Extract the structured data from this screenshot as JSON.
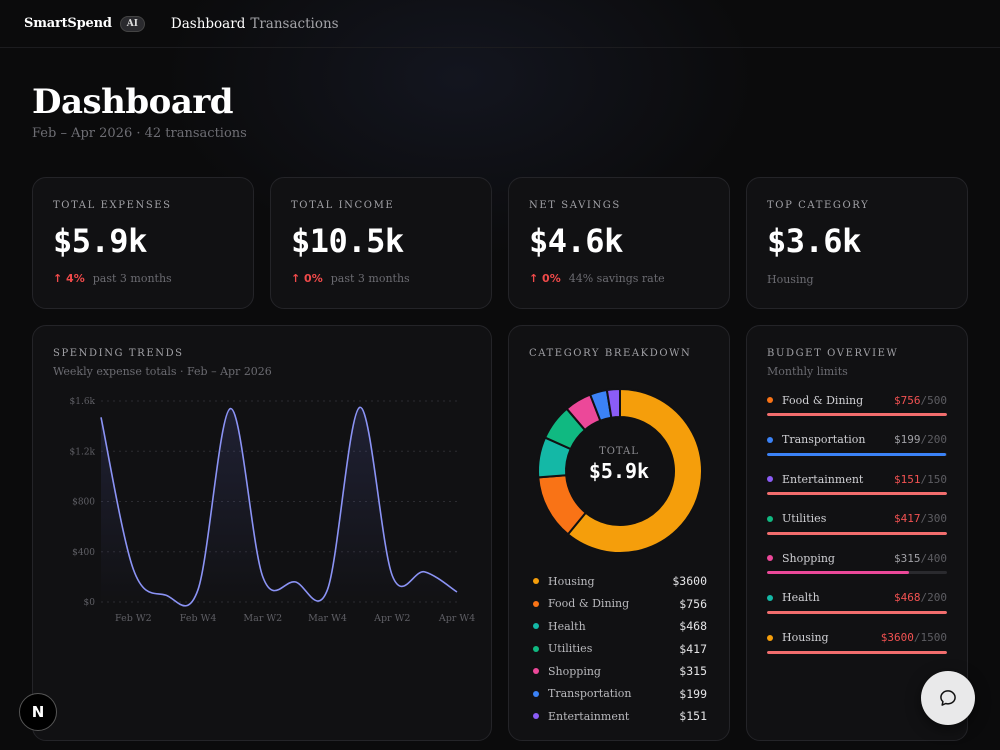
{
  "app": {
    "brand": "SmartSpend",
    "badge": "AI"
  },
  "nav": [
    {
      "label": "Dashboard",
      "active": true
    },
    {
      "label": "Transactions",
      "active": false
    }
  ],
  "header": {
    "title": "Dashboard",
    "subtitle": "Feb – Apr 2026 · 42 transactions"
  },
  "kpis": [
    {
      "label": "TOTAL EXPENSES",
      "value": "$5.9k",
      "change": "↑ 4%",
      "note": "past 3 months"
    },
    {
      "label": "TOTAL INCOME",
      "value": "$10.5k",
      "change": "↑ 0%",
      "note": "past 3 months"
    },
    {
      "label": "NET SAVINGS",
      "value": "$4.6k",
      "change": "↑ 0%",
      "note": "44% savings rate"
    },
    {
      "label": "TOP CATEGORY",
      "value": "$3.6k",
      "note": "Housing"
    }
  ],
  "trends": {
    "title": "SPENDING TRENDS",
    "subtitle": "Weekly expense totals · Feb – Apr 2026"
  },
  "breakdown": {
    "title": "CATEGORY BREAKDOWN",
    "center_label": "TOTAL",
    "center_value": "$5.9k",
    "items": [
      {
        "name": "Housing",
        "amount": "$3600",
        "value": 3600,
        "color": "#f59e0b"
      },
      {
        "name": "Food & Dining",
        "amount": "$756",
        "value": 756,
        "color": "#f97316"
      },
      {
        "name": "Health",
        "amount": "$468",
        "value": 468,
        "color": "#14b8a6"
      },
      {
        "name": "Utilities",
        "amount": "$417",
        "value": 417,
        "color": "#10b981"
      },
      {
        "name": "Shopping",
        "amount": "$315",
        "value": 315,
        "color": "#ec4899"
      },
      {
        "name": "Transportation",
        "amount": "$199",
        "value": 199,
        "color": "#3b82f6"
      },
      {
        "name": "Entertainment",
        "amount": "$151",
        "value": 151,
        "color": "#8b5cf6"
      }
    ]
  },
  "budget": {
    "title": "BUDGET OVERVIEW",
    "subtitle": "Monthly limits",
    "items": [
      {
        "name": "Food & Dining",
        "spent": "$756",
        "limit": "/500",
        "over": true,
        "fraction": 1.0,
        "dot": "#f97316",
        "bar": "#f26d6d"
      },
      {
        "name": "Transportation",
        "spent": "$199",
        "limit": "/200",
        "over": false,
        "fraction": 0.995,
        "dot": "#3b82f6",
        "bar": "#3b82f6"
      },
      {
        "name": "Entertainment",
        "spent": "$151",
        "limit": "/150",
        "over": true,
        "fraction": 1.0,
        "dot": "#8b5cf6",
        "bar": "#f26d6d"
      },
      {
        "name": "Utilities",
        "spent": "$417",
        "limit": "/300",
        "over": true,
        "fraction": 1.0,
        "dot": "#10b981",
        "bar": "#f26d6d"
      },
      {
        "name": "Shopping",
        "spent": "$315",
        "limit": "/400",
        "over": false,
        "fraction": 0.7875,
        "dot": "#ec4899",
        "bar": "#ec4899"
      },
      {
        "name": "Health",
        "spent": "$468",
        "limit": "/200",
        "over": true,
        "fraction": 1.0,
        "dot": "#14b8a6",
        "bar": "#f26d6d"
      },
      {
        "name": "Housing",
        "spent": "$3600",
        "limit": "/1500",
        "over": true,
        "fraction": 1.0,
        "dot": "#f59e0b",
        "bar": "#f26d6d"
      }
    ]
  },
  "chart_data": {
    "type": "line",
    "title": "SPENDING TRENDS",
    "subtitle": "Weekly expense totals · Feb – Apr 2026",
    "color": "#8b93f5",
    "xlabel": "",
    "ylabel": "",
    "ylim": [
      0,
      1600
    ],
    "yticks": [
      {
        "label": "$0",
        "value": 0
      },
      {
        "label": "$400",
        "value": 400
      },
      {
        "label": "$800",
        "value": 800
      },
      {
        "label": "$1.2k",
        "value": 1200
      },
      {
        "label": "$1.6k",
        "value": 1600
      }
    ],
    "x": [
      "Feb W1",
      "Feb W2",
      "Feb W3",
      "Feb W4",
      "Mar W1",
      "Mar W2",
      "Mar W3",
      "Mar W4",
      "Apr W1",
      "Apr W2",
      "Apr W3",
      "Apr W4"
    ],
    "xticks": [
      "Feb W2",
      "Feb W4",
      "Mar W2",
      "Mar W4",
      "Apr W2",
      "Apr W4"
    ],
    "values": [
      1470,
      260,
      55,
      100,
      1540,
      200,
      160,
      100,
      1550,
      210,
      240,
      80
    ],
    "grid": true
  },
  "ui": {
    "fab_icon": "chat-bubble-icon",
    "badge_letter": "N"
  }
}
